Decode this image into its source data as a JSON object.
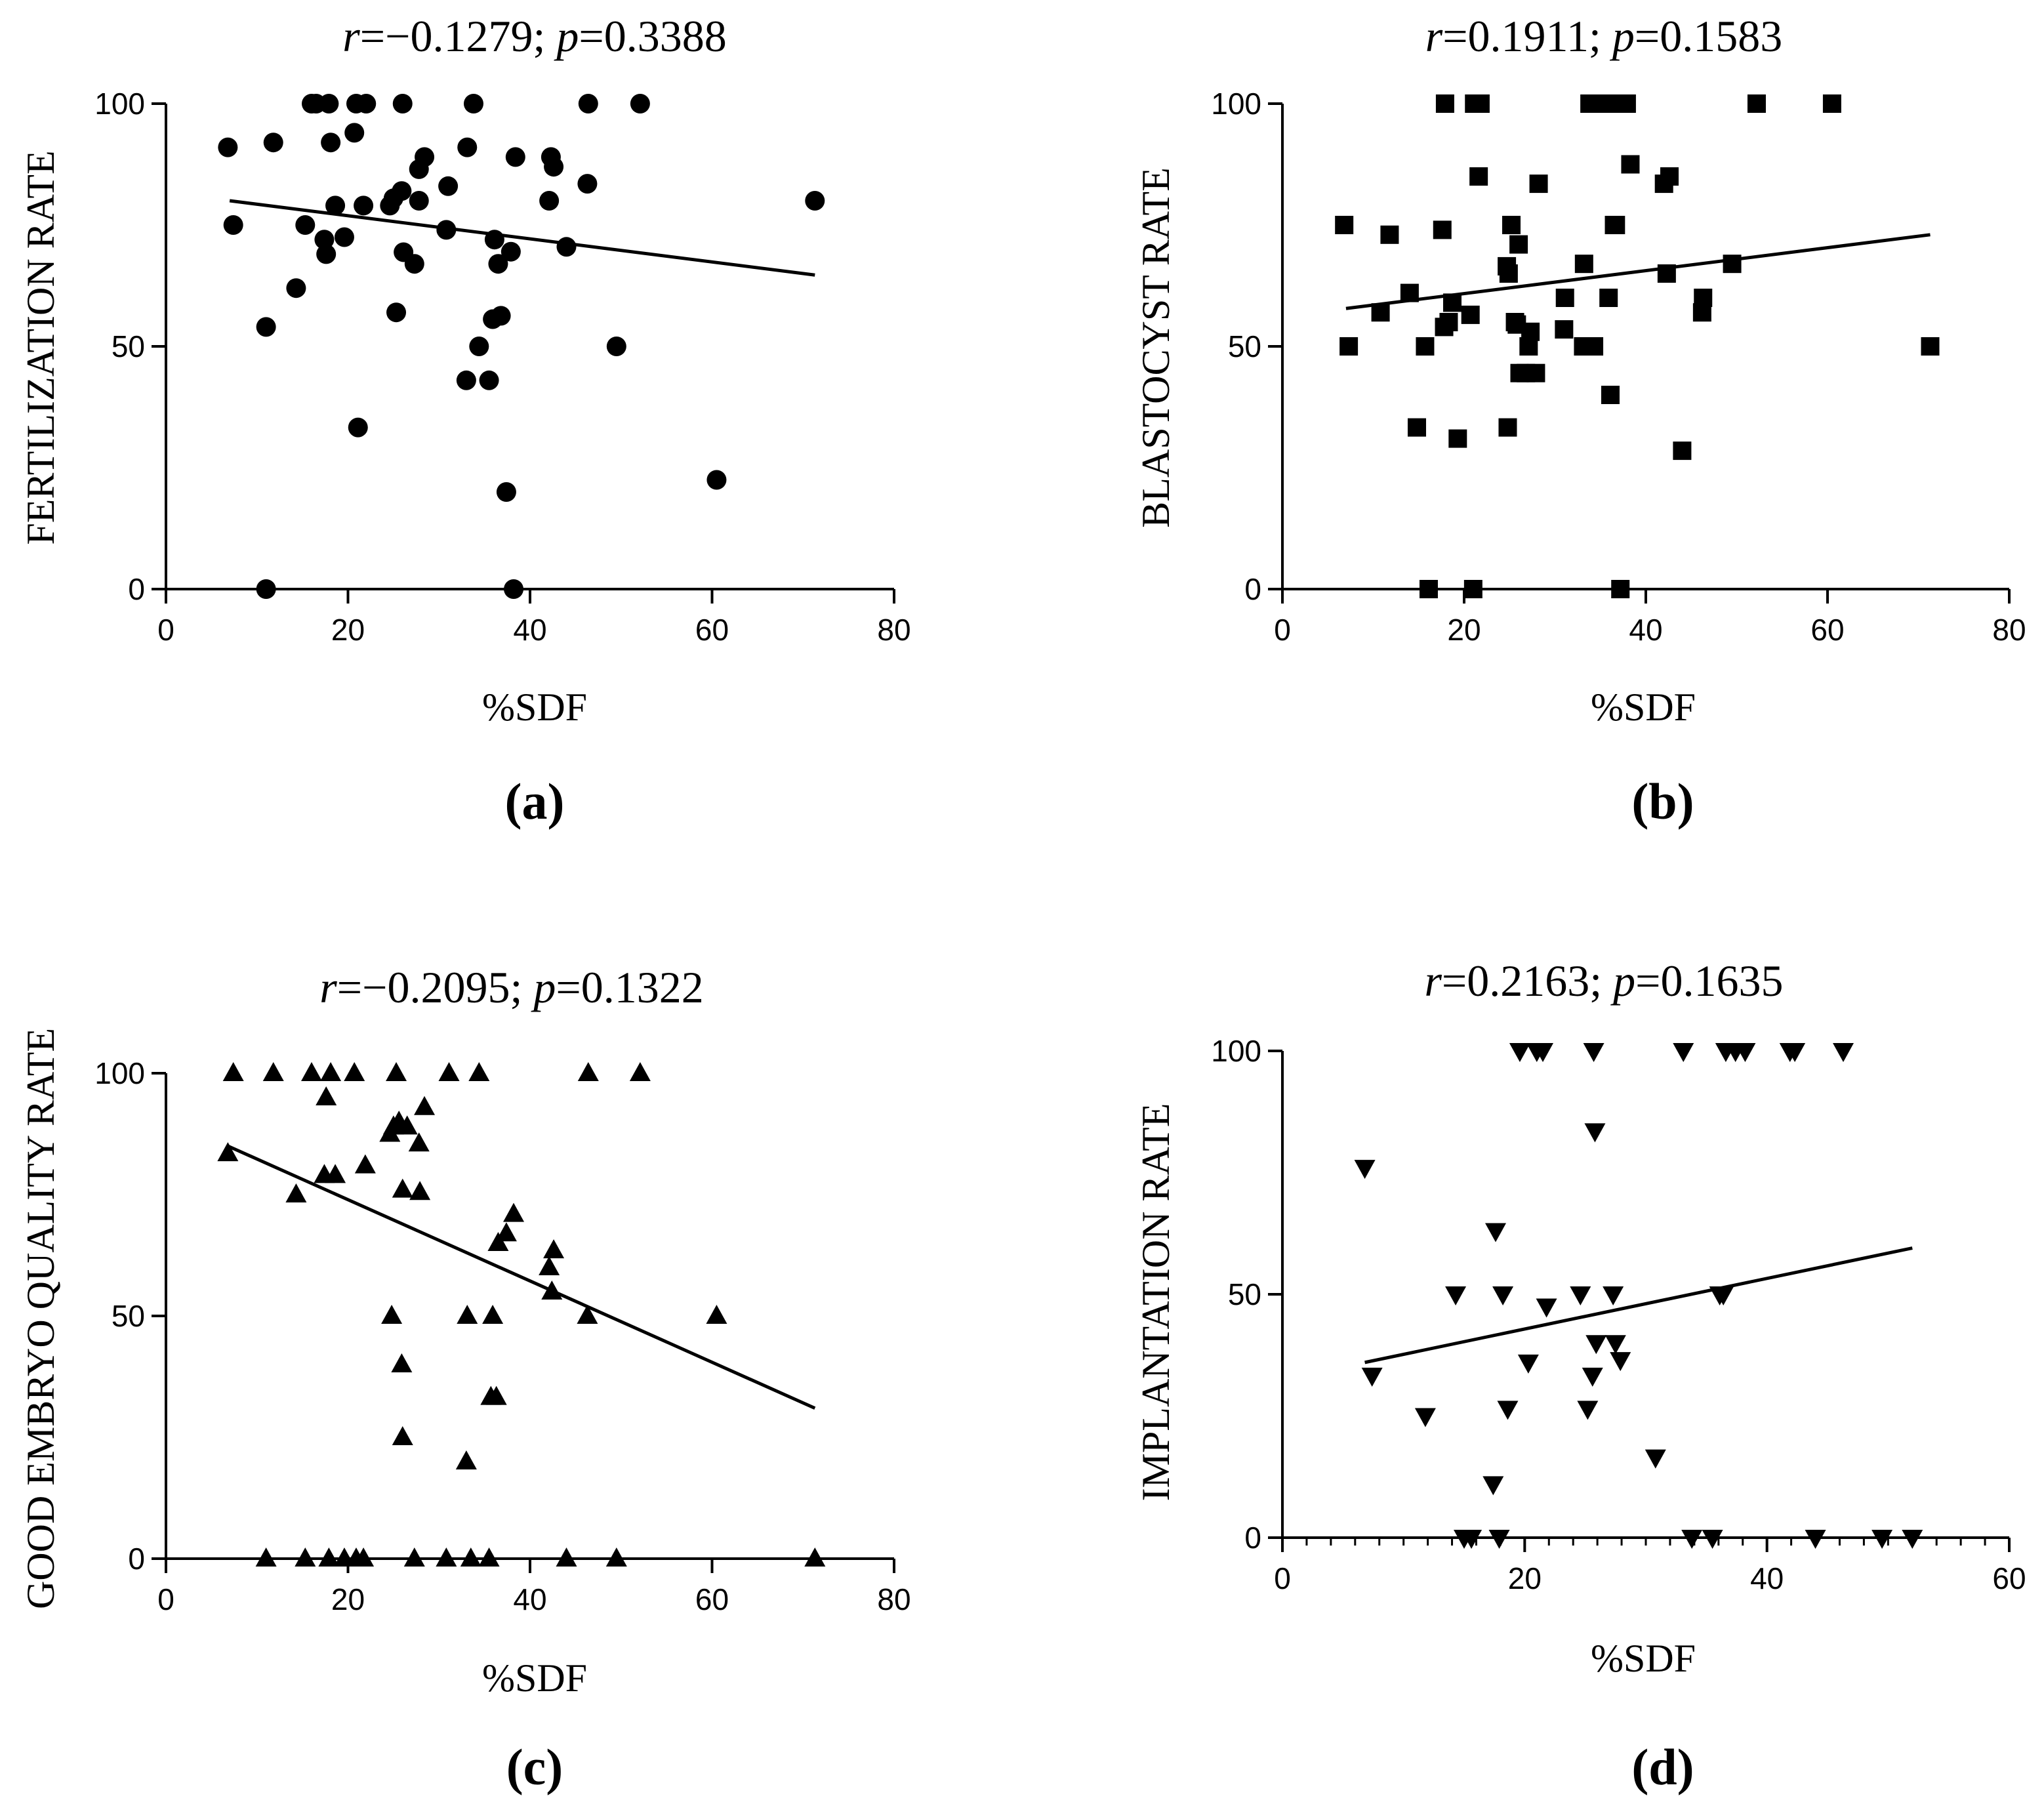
{
  "chart_data": [
    {
      "panel_label": "(a)",
      "type": "scatter",
      "marker": "circle",
      "title_r": "r",
      "title_r_value": "=−0.1279; ",
      "title_p": "p",
      "title_p_value": "=0.3388",
      "xlabel": "%SDF",
      "ylabel": "FERTILIZATION RATE",
      "xlim": [
        0,
        80
      ],
      "ylim": [
        0,
        100
      ],
      "xticks": [
        0,
        20,
        40,
        60,
        80
      ],
      "yticks": [
        0,
        50,
        100
      ],
      "minor_x_ticks": false,
      "grid": false,
      "fit_line": [
        [
          7,
          80
        ],
        [
          71.3,
          64.7
        ]
      ],
      "points": [
        [
          6.8,
          91
        ],
        [
          7.4,
          75
        ],
        [
          11,
          54
        ],
        [
          11,
          0
        ],
        [
          11.8,
          92
        ],
        [
          14.3,
          62
        ],
        [
          15.3,
          75
        ],
        [
          16,
          100
        ],
        [
          16.5,
          100
        ],
        [
          17.4,
          72
        ],
        [
          17.6,
          69
        ],
        [
          17.9,
          100
        ],
        [
          18.1,
          92
        ],
        [
          18.6,
          79
        ],
        [
          19.6,
          72.5
        ],
        [
          20.7,
          94
        ],
        [
          20.9,
          100
        ],
        [
          21.1,
          33.3
        ],
        [
          21.7,
          79
        ],
        [
          22,
          100
        ],
        [
          24.6,
          79
        ],
        [
          25,
          80.5
        ],
        [
          25.3,
          57
        ],
        [
          25.9,
          82
        ],
        [
          26,
          100
        ],
        [
          26.1,
          69.4
        ],
        [
          27.3,
          67
        ],
        [
          27.8,
          80
        ],
        [
          27.8,
          86.5
        ],
        [
          28.4,
          89
        ],
        [
          30.8,
          74
        ],
        [
          31,
          83
        ],
        [
          33,
          43
        ],
        [
          33.1,
          91
        ],
        [
          33.8,
          100
        ],
        [
          34.4,
          50
        ],
        [
          35.5,
          43
        ],
        [
          35.9,
          55.6
        ],
        [
          36.1,
          72
        ],
        [
          36.5,
          67
        ],
        [
          36.8,
          56.3
        ],
        [
          37.4,
          20
        ],
        [
          37.9,
          69.5
        ],
        [
          38.2,
          0
        ],
        [
          38.4,
          89
        ],
        [
          42.1,
          80
        ],
        [
          42.3,
          89
        ],
        [
          42.6,
          87
        ],
        [
          44,
          70.5
        ],
        [
          46.3,
          83.5
        ],
        [
          46.4,
          100
        ],
        [
          49.5,
          50
        ],
        [
          52.1,
          100
        ],
        [
          60.5,
          22.5
        ],
        [
          71.3,
          80
        ]
      ]
    },
    {
      "panel_label": "(b)",
      "type": "scatter",
      "marker": "square",
      "title_r": "r",
      "title_r_value": "=0.1911; ",
      "title_p": "p",
      "title_p_value": "=0.1583",
      "xlabel": "%SDF",
      "ylabel": "BLASTOCYST RATE",
      "xlim": [
        0,
        80
      ],
      "ylim": [
        0,
        100
      ],
      "xticks": [
        0,
        20,
        40,
        60,
        80
      ],
      "yticks": [
        0,
        50,
        100
      ],
      "minor_x_ticks": false,
      "grid": false,
      "fit_line": [
        [
          7,
          57.8
        ],
        [
          71.3,
          73
        ]
      ],
      "points": [
        [
          6.8,
          75
        ],
        [
          7.3,
          50
        ],
        [
          10.8,
          57
        ],
        [
          11.8,
          73
        ],
        [
          14,
          61
        ],
        [
          14.8,
          33.3
        ],
        [
          15.7,
          50
        ],
        [
          16.1,
          0
        ],
        [
          17.6,
          74
        ],
        [
          17.8,
          54
        ],
        [
          17.9,
          100
        ],
        [
          18.3,
          55
        ],
        [
          18.7,
          59
        ],
        [
          19.3,
          31
        ],
        [
          20.7,
          56.5
        ],
        [
          21,
          0
        ],
        [
          21.1,
          100
        ],
        [
          21.6,
          85
        ],
        [
          21.8,
          100
        ],
        [
          24.7,
          66.5
        ],
        [
          24.8,
          33.3
        ],
        [
          24.9,
          65
        ],
        [
          25.2,
          75
        ],
        [
          25.6,
          55
        ],
        [
          25.8,
          54.5
        ],
        [
          26,
          71
        ],
        [
          26.1,
          44.5
        ],
        [
          26.8,
          44.5
        ],
        [
          27.1,
          50
        ],
        [
          27.3,
          53
        ],
        [
          27.9,
          44.5
        ],
        [
          28.2,
          83.5
        ],
        [
          31,
          53.5
        ],
        [
          31.1,
          60
        ],
        [
          33.1,
          50
        ],
        [
          33.2,
          67
        ],
        [
          33.8,
          100
        ],
        [
          34.3,
          50
        ],
        [
          34.6,
          100
        ],
        [
          35.6,
          100
        ],
        [
          35.9,
          60
        ],
        [
          36.1,
          40
        ],
        [
          36.5,
          75
        ],
        [
          36.7,
          75
        ],
        [
          36.8,
          100
        ],
        [
          37.2,
          0
        ],
        [
          37.9,
          100
        ],
        [
          38.3,
          87.5
        ],
        [
          42,
          83.5
        ],
        [
          42.3,
          65
        ],
        [
          42.6,
          85
        ],
        [
          44,
          28.5
        ],
        [
          46.2,
          57
        ],
        [
          46.3,
          60
        ],
        [
          49.5,
          67
        ],
        [
          52.2,
          100
        ],
        [
          60.5,
          100
        ],
        [
          71.3,
          50
        ]
      ]
    },
    {
      "panel_label": "(c)",
      "type": "scatter",
      "marker": "triangle-up",
      "title_r": "r",
      "title_r_value": "=−0.2095; ",
      "title_p": "p",
      "title_p_value": "=0.1322",
      "xlabel": "%SDF",
      "ylabel": "GOOD EMBRYO QUALITY RATE",
      "xlim": [
        0,
        80
      ],
      "ylim": [
        0,
        100
      ],
      "xticks": [
        0,
        20,
        40,
        60,
        80
      ],
      "yticks": [
        0,
        50,
        100
      ],
      "minor_x_ticks": false,
      "grid": false,
      "fit_line": [
        [
          6.8,
          85
        ],
        [
          71.3,
          31
        ]
      ],
      "points": [
        [
          6.8,
          83.5
        ],
        [
          7.4,
          100
        ],
        [
          11,
          0
        ],
        [
          11.8,
          100
        ],
        [
          14.3,
          75
        ],
        [
          15.3,
          0
        ],
        [
          16,
          100
        ],
        [
          17.4,
          79
        ],
        [
          17.6,
          95
        ],
        [
          17.9,
          0
        ],
        [
          18.1,
          100
        ],
        [
          18.6,
          79
        ],
        [
          19.6,
          0
        ],
        [
          20.7,
          100
        ],
        [
          20.9,
          0
        ],
        [
          21.7,
          0
        ],
        [
          21.9,
          81
        ],
        [
          24.6,
          87.5
        ],
        [
          24.8,
          50
        ],
        [
          25,
          89
        ],
        [
          25.3,
          100
        ],
        [
          25.6,
          90
        ],
        [
          25.9,
          40
        ],
        [
          26,
          25
        ],
        [
          26,
          76
        ],
        [
          26.5,
          89
        ],
        [
          27.3,
          0
        ],
        [
          27.8,
          85.5
        ],
        [
          27.9,
          75.5
        ],
        [
          28.4,
          93
        ],
        [
          30.8,
          0
        ],
        [
          31.1,
          100
        ],
        [
          33,
          20
        ],
        [
          33.1,
          50
        ],
        [
          33.5,
          0
        ],
        [
          34.4,
          100
        ],
        [
          35.5,
          0
        ],
        [
          35.7,
          33.3
        ],
        [
          35.9,
          50
        ],
        [
          36.3,
          33.3
        ],
        [
          36.5,
          65
        ],
        [
          37.4,
          67
        ],
        [
          38.2,
          71
        ],
        [
          42.1,
          60
        ],
        [
          42.4,
          55
        ],
        [
          42.6,
          63.5
        ],
        [
          44,
          0
        ],
        [
          46.3,
          50
        ],
        [
          46.4,
          100
        ],
        [
          49.5,
          0
        ],
        [
          52.1,
          100
        ],
        [
          60.5,
          50
        ],
        [
          71.3,
          0
        ]
      ]
    },
    {
      "panel_label": "(d)",
      "type": "scatter",
      "marker": "triangle-down",
      "title_r": "r",
      "title_r_value": "=0.2163; ",
      "title_p": "p",
      "title_p_value": "=0.1635",
      "xlabel": "%SDF",
      "ylabel": "IMPLANTATION RATE",
      "xlim": [
        0,
        60
      ],
      "ylim": [
        0,
        100
      ],
      "xticks": [
        0,
        20,
        40,
        60
      ],
      "yticks": [
        0,
        50,
        100
      ],
      "minor_x_ticks": true,
      "grid": false,
      "fit_line": [
        [
          6.8,
          36
        ],
        [
          52,
          59.5
        ]
      ],
      "points": [
        [
          6.8,
          76
        ],
        [
          7.4,
          33.3
        ],
        [
          11.8,
          25
        ],
        [
          14.3,
          50
        ],
        [
          15,
          0
        ],
        [
          15.6,
          0
        ],
        [
          17.4,
          11
        ],
        [
          17.6,
          63
        ],
        [
          17.9,
          0
        ],
        [
          18.2,
          50
        ],
        [
          18.6,
          26.5
        ],
        [
          19.6,
          100
        ],
        [
          20.3,
          36
        ],
        [
          21,
          100
        ],
        [
          21.5,
          100
        ],
        [
          21.8,
          47.5
        ],
        [
          24.6,
          50
        ],
        [
          25.2,
          26.5
        ],
        [
          25.6,
          33.3
        ],
        [
          25.7,
          100
        ],
        [
          25.8,
          83.5
        ],
        [
          25.9,
          40
        ],
        [
          27.3,
          50
        ],
        [
          27.5,
          40
        ],
        [
          27.9,
          36.5
        ],
        [
          30.8,
          16.5
        ],
        [
          33.1,
          100
        ],
        [
          33.8,
          0
        ],
        [
          35.5,
          0
        ],
        [
          36.1,
          50
        ],
        [
          36.4,
          50
        ],
        [
          36.6,
          100
        ],
        [
          37.4,
          100
        ],
        [
          38.2,
          100
        ],
        [
          41.9,
          100
        ],
        [
          42.3,
          100
        ],
        [
          44,
          0
        ],
        [
          46.3,
          100
        ],
        [
          49.5,
          0
        ],
        [
          52,
          0
        ]
      ]
    }
  ]
}
